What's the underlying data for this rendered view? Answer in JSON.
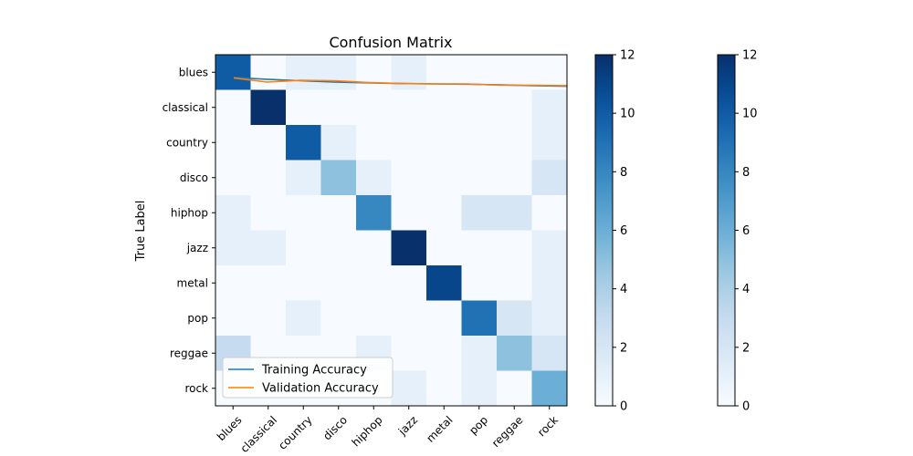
{
  "chart_data": {
    "type": "heatmap",
    "title": "Confusion Matrix",
    "xlabel": "",
    "ylabel": "True Label",
    "categories": [
      "blues",
      "classical",
      "country",
      "disco",
      "hiphop",
      "jazz",
      "metal",
      "pop",
      "reggae",
      "rock"
    ],
    "matrix": [
      [
        10,
        0,
        1,
        1,
        0,
        1,
        0,
        0,
        0,
        0
      ],
      [
        0,
        12,
        0,
        0,
        0,
        0,
        0,
        0,
        0,
        1
      ],
      [
        0,
        0,
        10,
        1,
        0,
        0,
        0,
        0,
        0,
        1
      ],
      [
        0,
        0,
        1,
        5,
        1,
        0,
        0,
        0,
        0,
        2
      ],
      [
        1,
        0,
        0,
        0,
        8,
        0,
        0,
        2,
        2,
        0
      ],
      [
        1,
        1,
        0,
        0,
        0,
        12,
        0,
        0,
        0,
        1
      ],
      [
        0,
        0,
        0,
        0,
        0,
        0,
        11,
        0,
        0,
        1
      ],
      [
        0,
        0,
        1,
        0,
        0,
        0,
        0,
        9,
        2,
        1
      ],
      [
        3,
        0,
        0,
        0,
        1,
        0,
        0,
        1,
        5,
        2
      ],
      [
        0,
        0,
        0,
        0,
        0,
        1,
        0,
        1,
        0,
        6
      ]
    ],
    "color_range": [
      0,
      12
    ],
    "colormap": "Blues",
    "colorbar_ticks": [
      "0",
      "2",
      "4",
      "6",
      "8",
      "10",
      "12"
    ],
    "overlay_lines": [
      {
        "name": "Training Accuracy",
        "color": "#1f77b4",
        "values": [
          0.935,
          0.93,
          0.926,
          0.922,
          0.92,
          0.918,
          0.917,
          0.916,
          0.914,
          0.912,
          0.91
        ]
      },
      {
        "name": "Validation Accuracy",
        "color": "#ff7f0e",
        "values": [
          0.934,
          0.922,
          0.927,
          0.926,
          0.921,
          0.918,
          0.917,
          0.917,
          0.913,
          0.913,
          0.912
        ]
      }
    ],
    "legend_position": "lower left"
  }
}
